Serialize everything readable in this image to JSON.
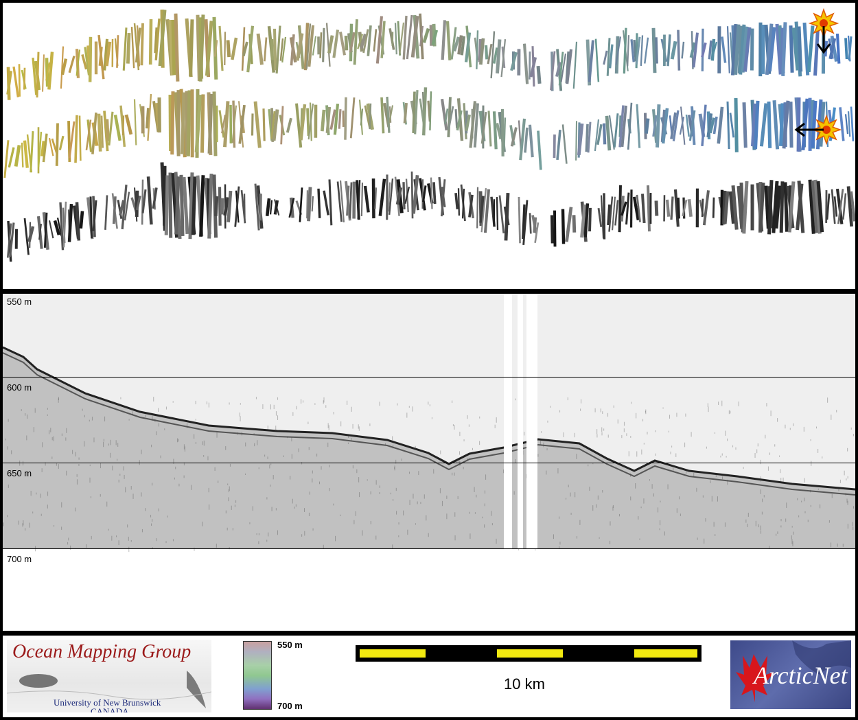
{
  "depth_profile": {
    "labels": [
      "550 m",
      "600 m",
      "650 m",
      "700 m"
    ]
  },
  "footer": {
    "group_logo": {
      "title": "Ocean Mapping Group",
      "line1": "University of New Brunswick",
      "line2": "CANADA"
    },
    "colorbar": {
      "top_label": "550 m",
      "bottom_label": "700 m"
    },
    "scale": {
      "label": "10 km"
    },
    "partner_logo": {
      "text": "ArcticNet"
    }
  },
  "colors": {
    "frame": "#000000",
    "scalebar_fill": "#f3ea10",
    "omg_red": "#9b1a1a",
    "arcticnet_blue": "#46528f",
    "maple_red": "#d8161c"
  }
}
